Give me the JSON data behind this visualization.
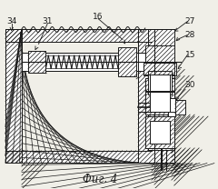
{
  "title": "Фиг. 4",
  "bg_color": "#f0efe8",
  "line_color": "#1a1a1a",
  "lw": 0.7,
  "fig_w": 2.4,
  "fig_h": 2.08,
  "dpi": 100
}
